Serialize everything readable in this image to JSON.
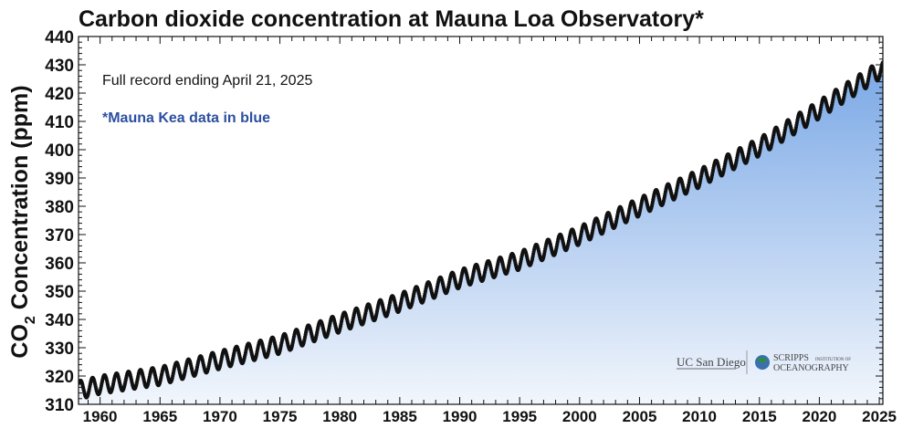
{
  "chart_data": {
    "type": "scatter",
    "title": "Carbon dioxide concentration at Mauna Loa Observatory*",
    "ylabel_main": "CO",
    "ylabel_sub": "2",
    "ylabel_rest": " Concentration (ppm)",
    "xlabel": "",
    "xlim": [
      1958.2,
      2025.3
    ],
    "ylim": [
      310,
      440
    ],
    "xticks": [
      1960,
      1965,
      1970,
      1975,
      1980,
      1985,
      1990,
      1995,
      2000,
      2005,
      2010,
      2015,
      2020,
      2025
    ],
    "yticks": [
      310,
      320,
      330,
      340,
      350,
      360,
      370,
      380,
      390,
      400,
      410,
      420,
      430,
      440
    ],
    "annotations": {
      "record": "Full record ending April 21, 2025",
      "mauna_kea": "*Mauna Kea data in blue"
    },
    "series": [
      {
        "color": "#111111",
        "fill_top": "#7aa8e6",
        "fill_bottom": "#f2f6fc",
        "annual_mean_anchors": [
          [
            1958.5,
            315.2
          ],
          [
            1960,
            316.9
          ],
          [
            1965,
            320.0
          ],
          [
            1970,
            325.7
          ],
          [
            1975,
            331.1
          ],
          [
            1980,
            338.7
          ],
          [
            1985,
            346.0
          ],
          [
            1990,
            354.4
          ],
          [
            1995,
            360.8
          ],
          [
            2000,
            369.7
          ],
          [
            2005,
            379.8
          ],
          [
            2010,
            389.9
          ],
          [
            2015,
            401.0
          ],
          [
            2020,
            414.2
          ],
          [
            2025,
            428.0
          ]
        ],
        "seasonal_amplitude_ppm": 3.2
      }
    ],
    "grid": false,
    "legend": "none"
  },
  "logos": {
    "ucsd": "UC San Diego",
    "scripps_main": "SCRIPPS",
    "scripps_small": "INSTITUTION OF",
    "scripps_bottom": "OCEANOGRAPHY"
  }
}
